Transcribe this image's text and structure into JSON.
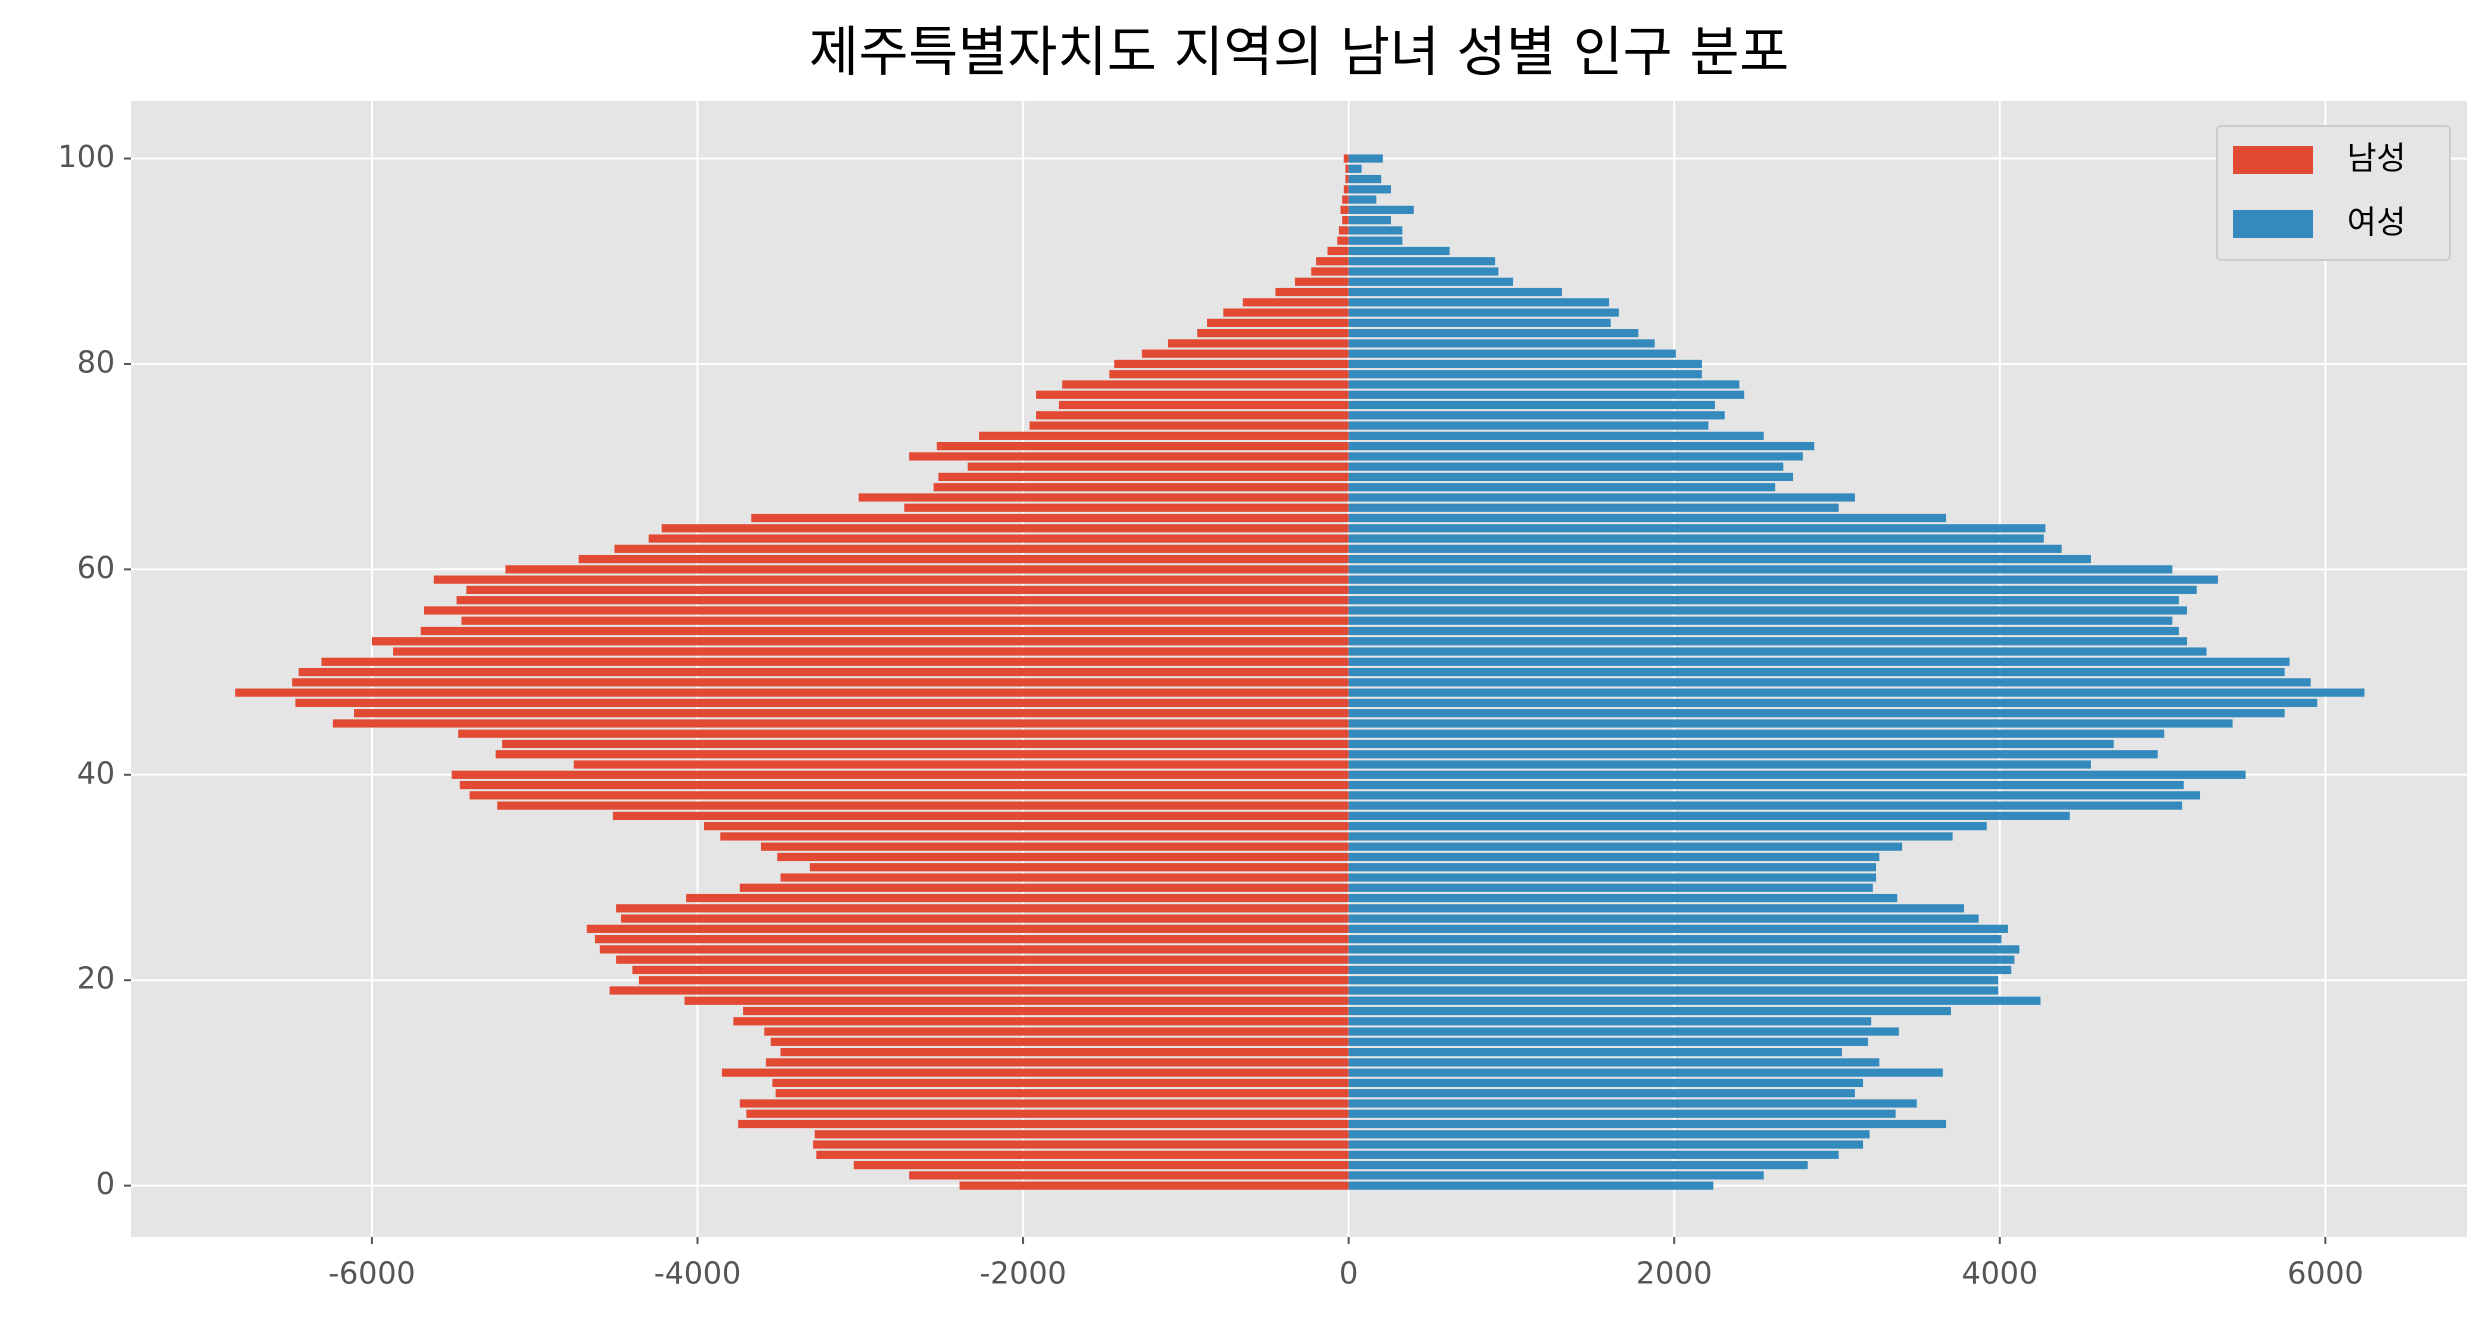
{
  "chart_data": {
    "type": "bar",
    "orientation": "horizontal",
    "title": "제주특별자치도 지역의 남녀 성별 인구 분포",
    "y": [
      0,
      1,
      2,
      3,
      4,
      5,
      6,
      7,
      8,
      9,
      10,
      11,
      12,
      13,
      14,
      15,
      16,
      17,
      18,
      19,
      20,
      21,
      22,
      23,
      24,
      25,
      26,
      27,
      28,
      29,
      30,
      31,
      32,
      33,
      34,
      35,
      36,
      37,
      38,
      39,
      40,
      41,
      42,
      43,
      44,
      45,
      46,
      47,
      48,
      49,
      50,
      51,
      52,
      53,
      54,
      55,
      56,
      57,
      58,
      59,
      60,
      61,
      62,
      63,
      64,
      65,
      66,
      67,
      68,
      69,
      70,
      71,
      72,
      73,
      74,
      75,
      76,
      77,
      78,
      79,
      80,
      81,
      82,
      83,
      84,
      85,
      86,
      87,
      88,
      89,
      90,
      91,
      92,
      93,
      94,
      95,
      96,
      97,
      98,
      99,
      100
    ],
    "series": [
      {
        "name": "남성",
        "color": "#E24A33",
        "values": [
          -2390,
          -2700,
          -3040,
          -3270,
          -3290,
          -3280,
          -3750,
          -3700,
          -3740,
          -3520,
          -3540,
          -3850,
          -3580,
          -3490,
          -3550,
          -3590,
          -3780,
          -3720,
          -4080,
          -4540,
          -4360,
          -4400,
          -4500,
          -4600,
          -4630,
          -4680,
          -4470,
          -4500,
          -4070,
          -3740,
          -3490,
          -3310,
          -3510,
          -3610,
          -3860,
          -3960,
          -4520,
          -5230,
          -5400,
          -5460,
          -5510,
          -4760,
          -5240,
          -5200,
          -5470,
          -6240,
          -6110,
          -6470,
          -6840,
          -6490,
          -6450,
          -6310,
          -5870,
          -6000,
          -5700,
          -5450,
          -5680,
          -5480,
          -5420,
          -5620,
          -5180,
          -4730,
          -4510,
          -4300,
          -4220,
          -3670,
          -2730,
          -3010,
          -2550,
          -2520,
          -2340,
          -2700,
          -2530,
          -2270,
          -1960,
          -1920,
          -1780,
          -1920,
          -1760,
          -1470,
          -1440,
          -1270,
          -1110,
          -930,
          -870,
          -770,
          -650,
          -450,
          -330,
          -230,
          -200,
          -130,
          -70,
          -60,
          -40,
          -50,
          -40,
          -30,
          -20,
          -20,
          -30
        ]
      },
      {
        "name": "여성",
        "color": "#348ABD",
        "values": [
          2240,
          2550,
          2820,
          3010,
          3160,
          3200,
          3670,
          3360,
          3490,
          3110,
          3160,
          3650,
          3260,
          3030,
          3190,
          3380,
          3210,
          3700,
          4250,
          3990,
          3990,
          4070,
          4090,
          4120,
          4010,
          4050,
          3870,
          3780,
          3370,
          3220,
          3240,
          3240,
          3260,
          3400,
          3710,
          3920,
          4430,
          5120,
          5230,
          5130,
          5510,
          4560,
          4970,
          4700,
          5010,
          5430,
          5750,
          5950,
          6240,
          5910,
          5750,
          5780,
          5270,
          5150,
          5100,
          5060,
          5150,
          5100,
          5210,
          5340,
          5060,
          4560,
          4380,
          4270,
          4280,
          3670,
          3010,
          3110,
          2620,
          2730,
          2670,
          2790,
          2860,
          2550,
          2210,
          2310,
          2250,
          2430,
          2400,
          2170,
          2170,
          2010,
          1880,
          1780,
          1610,
          1660,
          1600,
          1310,
          1010,
          920,
          900,
          620,
          330,
          330,
          260,
          400,
          170,
          260,
          200,
          80,
          210
        ]
      }
    ],
    "xlim": [
      -7480,
      6870
    ],
    "xticks": [
      -6000,
      -4000,
      -2000,
      0,
      2000,
      4000,
      6000
    ],
    "ylim": [
      -5,
      105.6
    ],
    "yticks": [
      0,
      20,
      40,
      60,
      80,
      100
    ],
    "grid": true,
    "legend": "upper right"
  }
}
